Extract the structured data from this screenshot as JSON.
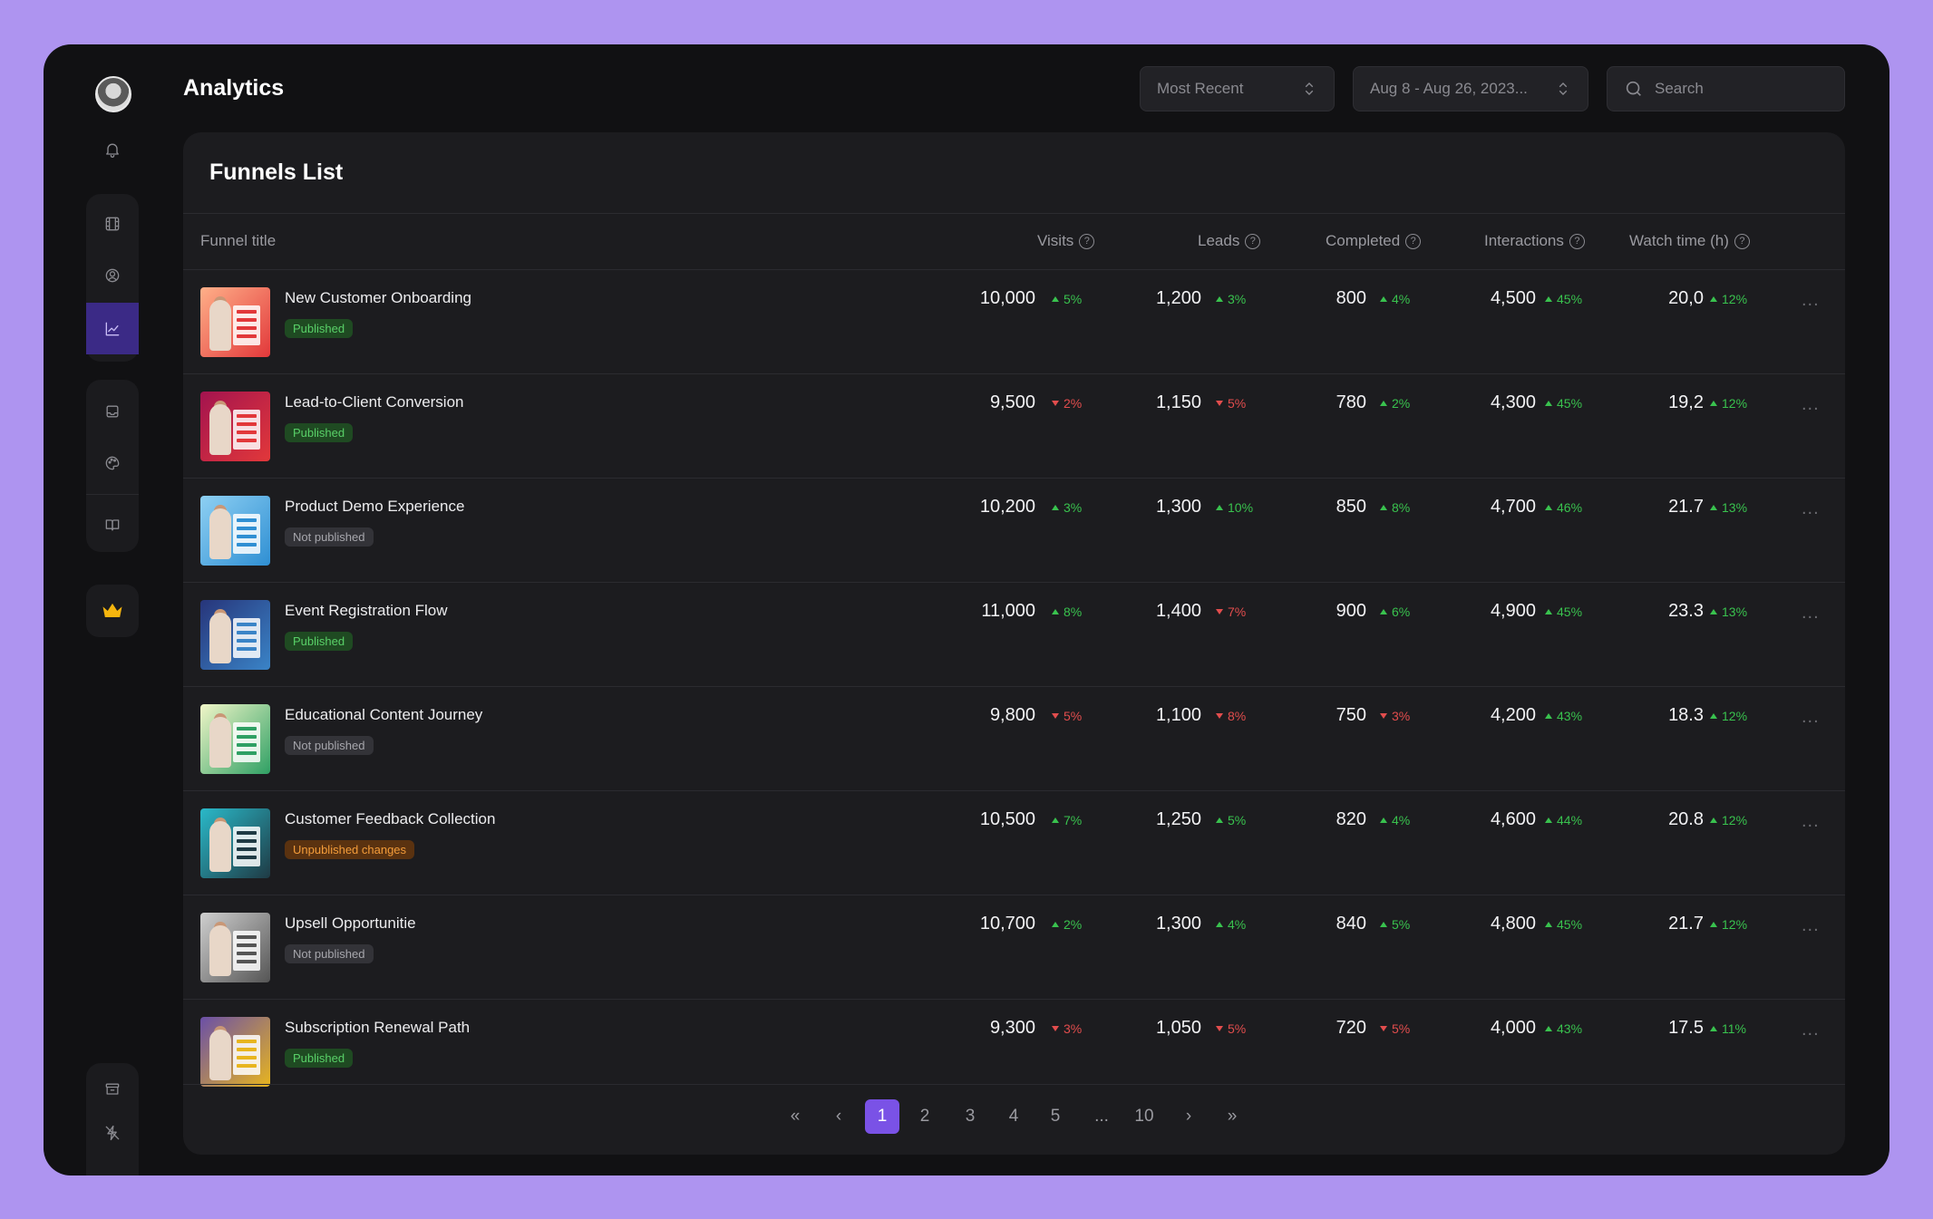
{
  "header": {
    "title": "Analytics",
    "sort_select": "Most Recent",
    "date_select": "Aug 8 - Aug 26, 2023...",
    "search_placeholder": "Search"
  },
  "sidebar": {
    "items": [
      {
        "name": "bell-icon"
      },
      {
        "name": "film-icon"
      },
      {
        "name": "user-circle-icon"
      },
      {
        "name": "chart-icon",
        "active": true
      },
      {
        "name": "inbox-icon"
      },
      {
        "name": "palette-icon"
      },
      {
        "name": "book-icon"
      },
      {
        "name": "crown-icon"
      },
      {
        "name": "archive-icon"
      },
      {
        "name": "zap-off-icon"
      }
    ]
  },
  "card": {
    "title": "Funnels List",
    "columns": {
      "title": "Funnel title",
      "visits": "Visits",
      "leads": "Leads",
      "completed": "Completed",
      "interactions": "Interactions",
      "watch": "Watch time (h)",
      "help": "?"
    }
  },
  "status_colors": {
    "published": "#59d068",
    "not": "#a6a6ac",
    "unpub": "#f39c3a",
    "up": "#39c24e",
    "down": "#e24d4d",
    "accent": "#7a52e6"
  },
  "rows": [
    {
      "title": "New Customer Onboarding",
      "status": "Published",
      "kind": "published",
      "thumb": [
        "#ffb089",
        "#e2383a"
      ],
      "visits": "10,000",
      "visits_d": "5%",
      "visits_up": true,
      "leads": "1,200",
      "leads_d": "3%",
      "leads_up": true,
      "completed": "800",
      "completed_d": "4%",
      "completed_up": true,
      "interactions": "4,500",
      "interactions_d": "45%",
      "interactions_up": true,
      "watch": "20,0",
      "watch_d": "12%",
      "watch_up": true,
      "more": "..."
    },
    {
      "title": "Lead-to-Client Conversion",
      "status": "Published",
      "kind": "published",
      "thumb": [
        "#a3134f",
        "#e2383a"
      ],
      "visits": "9,500",
      "visits_d": "2%",
      "visits_up": false,
      "leads": "1,150",
      "leads_d": "5%",
      "leads_up": false,
      "completed": "780",
      "completed_d": "2%",
      "completed_up": true,
      "interactions": "4,300",
      "interactions_d": "45%",
      "interactions_up": true,
      "watch": "19,2",
      "watch_d": "12%",
      "watch_up": true,
      "more": "..."
    },
    {
      "title": "Product Demo Experience",
      "status": "Not published",
      "kind": "not",
      "thumb": [
        "#8ed0f3",
        "#2f8fd3"
      ],
      "visits": "10,200",
      "visits_d": "3%",
      "visits_up": true,
      "leads": "1,300",
      "leads_d": "10%",
      "leads_up": true,
      "completed": "850",
      "completed_d": "8%",
      "completed_up": true,
      "interactions": "4,700",
      "interactions_d": "46%",
      "interactions_up": true,
      "watch": "21.7",
      "watch_d": "13%",
      "watch_up": true,
      "more": "..."
    },
    {
      "title": "Event Registration Flow",
      "status": "Published",
      "kind": "published",
      "thumb": [
        "#27357a",
        "#3a84c7"
      ],
      "visits": "11,000",
      "visits_d": "8%",
      "visits_up": true,
      "leads": "1,400",
      "leads_d": "7%",
      "leads_up": false,
      "completed": "900",
      "completed_d": "6%",
      "completed_up": true,
      "interactions": "4,900",
      "interactions_d": "45%",
      "interactions_up": true,
      "watch": "23.3",
      "watch_d": "13%",
      "watch_up": true,
      "more": "..."
    },
    {
      "title": "Educational Content Journey",
      "status": "Not published",
      "kind": "not",
      "thumb": [
        "#f1f6c8",
        "#2fa064"
      ],
      "visits": "9,800",
      "visits_d": "5%",
      "visits_up": false,
      "leads": "1,100",
      "leads_d": "8%",
      "leads_up": false,
      "completed": "750",
      "completed_d": "3%",
      "completed_up": false,
      "interactions": "4,200",
      "interactions_d": "43%",
      "interactions_up": true,
      "watch": "18.3",
      "watch_d": "12%",
      "watch_up": true,
      "more": "..."
    },
    {
      "title": "Customer Feedback Collection",
      "status": "Unpublished changes",
      "kind": "unpub",
      "thumb": [
        "#2ab9c9",
        "#1f3a44"
      ],
      "visits": "10,500",
      "visits_d": "7%",
      "visits_up": true,
      "leads": "1,250",
      "leads_d": "5%",
      "leads_up": true,
      "completed": "820",
      "completed_d": "4%",
      "completed_up": true,
      "interactions": "4,600",
      "interactions_d": "44%",
      "interactions_up": true,
      "watch": "20.8",
      "watch_d": "12%",
      "watch_up": true,
      "more": "..."
    },
    {
      "title": "Upsell Opportunitie",
      "status": "Not published",
      "kind": "not",
      "thumb": [
        "#cfcfcf",
        "#555555"
      ],
      "visits": "10,700",
      "visits_d": "2%",
      "visits_up": true,
      "leads": "1,300",
      "leads_d": "4%",
      "leads_up": true,
      "completed": "840",
      "completed_d": "5%",
      "completed_up": true,
      "interactions": "4,800",
      "interactions_d": "45%",
      "interactions_up": true,
      "watch": "21.7",
      "watch_d": "12%",
      "watch_up": true,
      "more": "..."
    },
    {
      "title": "Subscription Renewal Path",
      "status": "Published",
      "kind": "published",
      "thumb": [
        "#6a4fa8",
        "#e8b51e"
      ],
      "visits": "9,300",
      "visits_d": "3%",
      "visits_up": false,
      "leads": "1,050",
      "leads_d": "5%",
      "leads_up": false,
      "completed": "720",
      "completed_d": "5%",
      "completed_up": false,
      "interactions": "4,000",
      "interactions_d": "43%",
      "interactions_up": true,
      "watch": "17.5",
      "watch_d": "11%",
      "watch_up": true,
      "more": "..."
    }
  ],
  "pagination": {
    "first": "«",
    "prev": "‹",
    "next": "›",
    "last": "»",
    "pages": [
      "1",
      "2",
      "3",
      "4",
      "5",
      "...",
      "10"
    ],
    "current": "1"
  }
}
